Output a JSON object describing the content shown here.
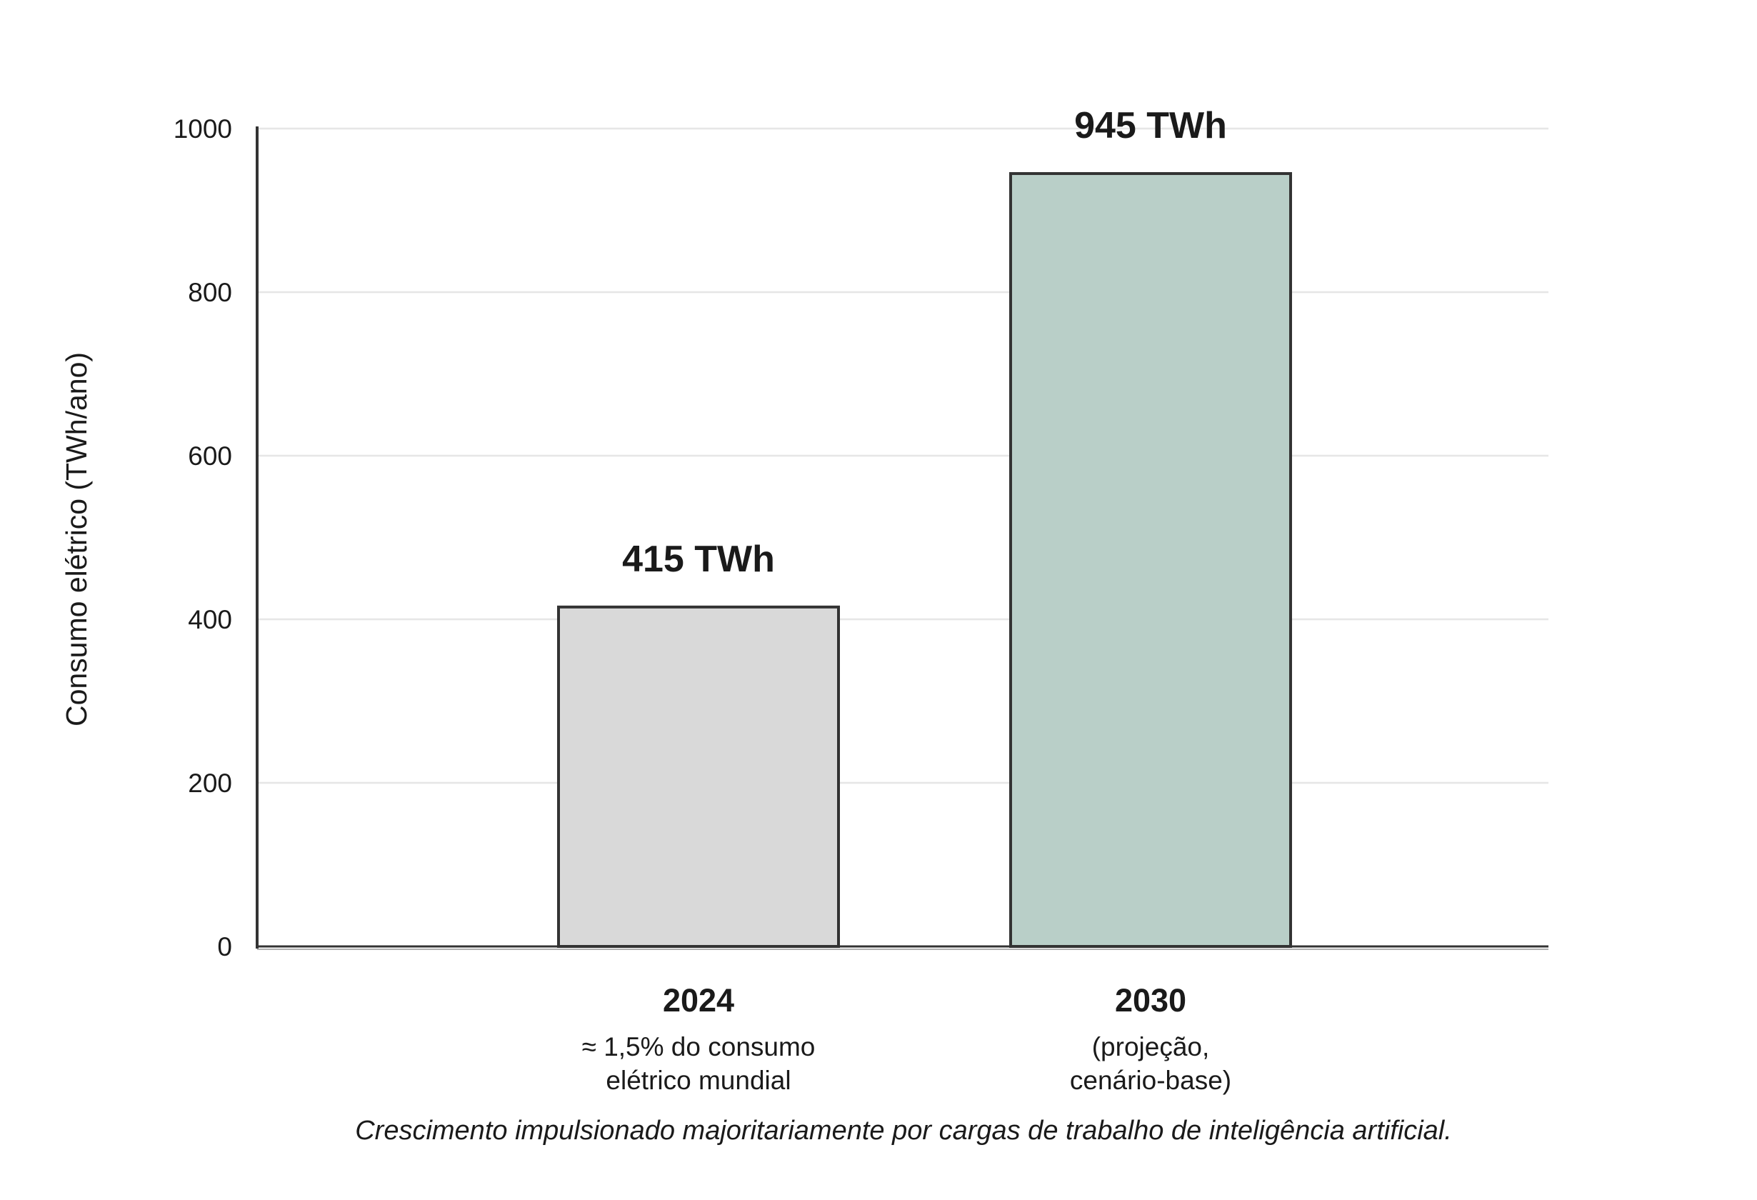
{
  "chart_data": {
    "type": "bar",
    "categories": [
      "2024",
      "2030"
    ],
    "category_sublabels": [
      [
        "≈ 1,5% do consumo",
        "elétrico mundial"
      ],
      [
        "(projeção,",
        "cenário-base)"
      ]
    ],
    "values": [
      415,
      945
    ],
    "value_labels": [
      "415 TWh",
      "945 TWh"
    ],
    "bar_colors": [
      "#d9d9d9",
      "#b9cfc8"
    ],
    "bar_outline_color": "#333333",
    "ylabel": "Consumo elétrico (TWh/ano)",
    "xlabel": "",
    "ylim": [
      0,
      1000
    ],
    "yticks": [
      0,
      200,
      400,
      600,
      800,
      1000
    ],
    "grid": true,
    "grid_color": "#e6e6e6",
    "note": "Crescimento impulsionado majoritariamente por cargas de trabalho de inteligência artificial."
  }
}
